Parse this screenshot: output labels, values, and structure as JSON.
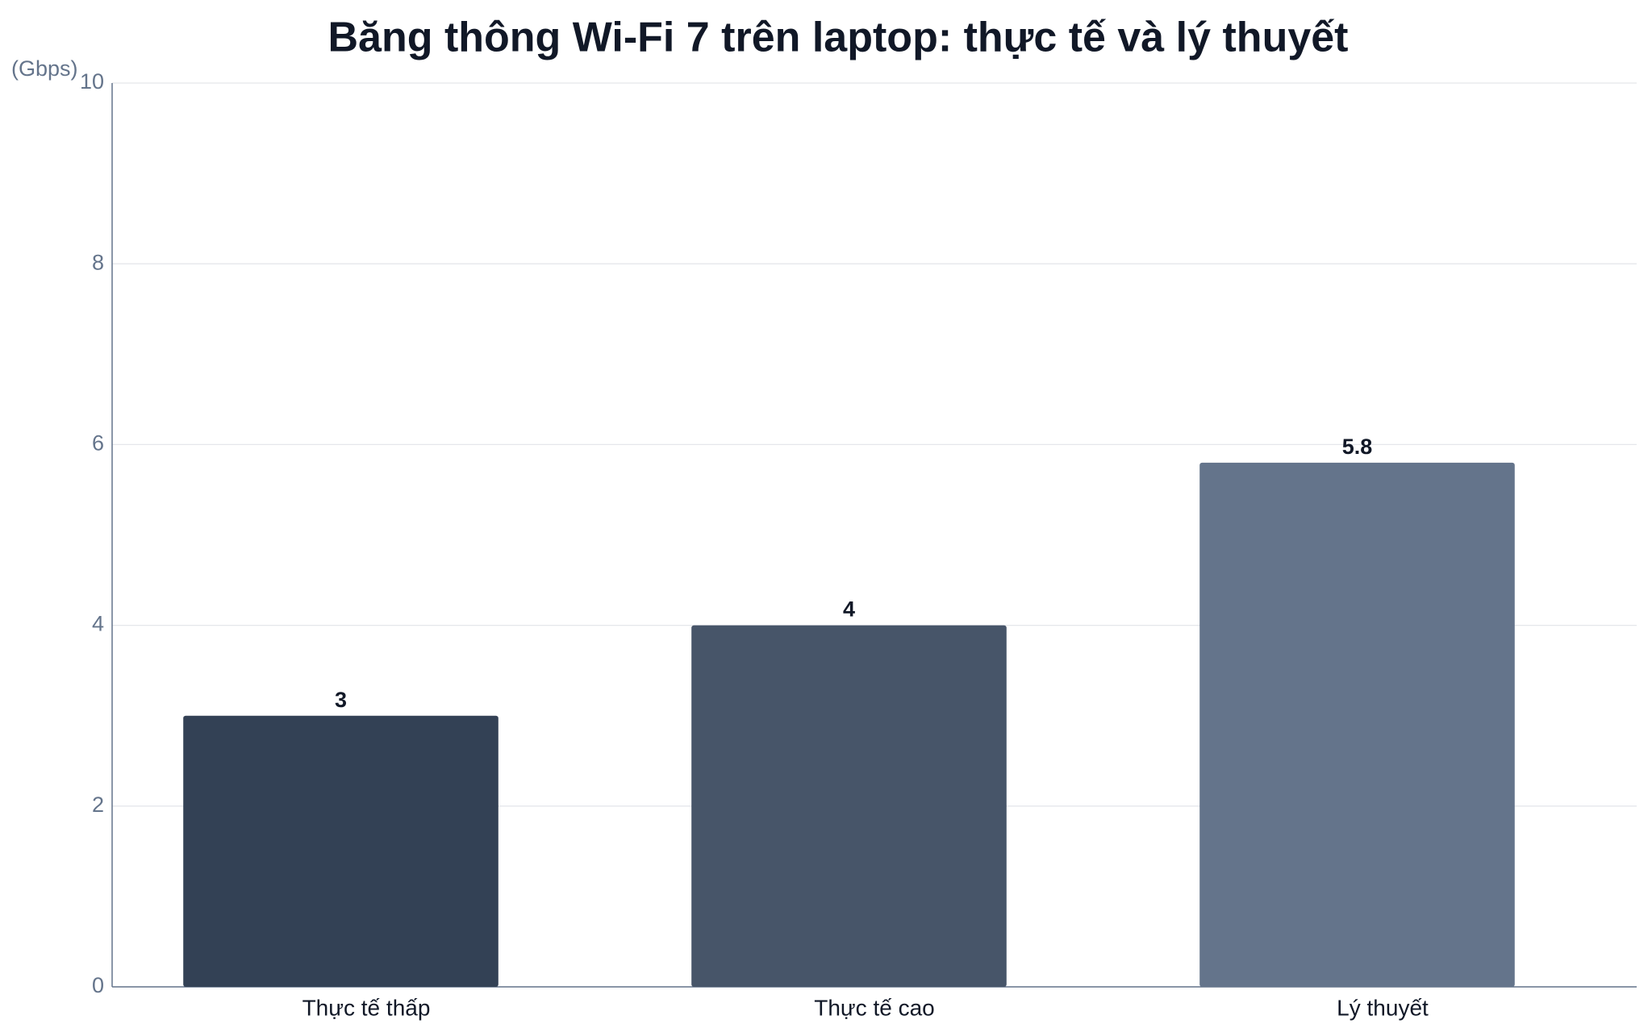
{
  "chart_data": {
    "type": "bar",
    "title": "Băng thông Wi-Fi 7 trên laptop: thực tế và lý thuyết",
    "y_axis_label": "(Gbps)",
    "categories": [
      "Thực tế thấp",
      "Thực tế cao",
      "Lý thuyết"
    ],
    "values": [
      3,
      4,
      5.8
    ],
    "colors": [
      "#334155",
      "#475569",
      "#64748b"
    ],
    "ylim": [
      0,
      10
    ],
    "yticks": [
      0,
      2,
      4,
      6,
      8,
      10
    ],
    "grid": true
  }
}
